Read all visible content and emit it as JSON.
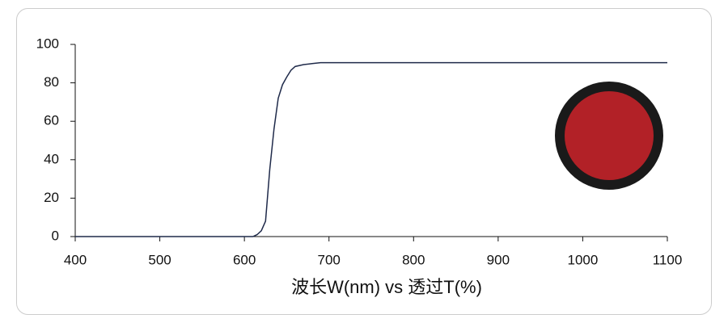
{
  "chart_data": {
    "type": "line",
    "x_label": "波长W(nm) vs 透过T(%)",
    "x": [
      400,
      610,
      615,
      620,
      625,
      630,
      635,
      640,
      645,
      650,
      655,
      660,
      670,
      680,
      690,
      700,
      1100
    ],
    "series": [
      {
        "color": "#1f2a4a",
        "values": [
          0,
          0,
          1,
          3,
          8,
          35,
          56,
          72,
          79,
          83,
          86.5,
          88.5,
          89.5,
          90,
          90.5,
          90.5,
          90.5
        ]
      }
    ],
    "xlim": [
      400,
      1100
    ],
    "xticks": [
      400,
      500,
      600,
      700,
      800,
      900,
      1000,
      1100
    ],
    "ylim": [
      0,
      100
    ],
    "yticks": [
      0,
      20,
      40,
      60,
      80,
      100
    ],
    "grid": false
  }
}
